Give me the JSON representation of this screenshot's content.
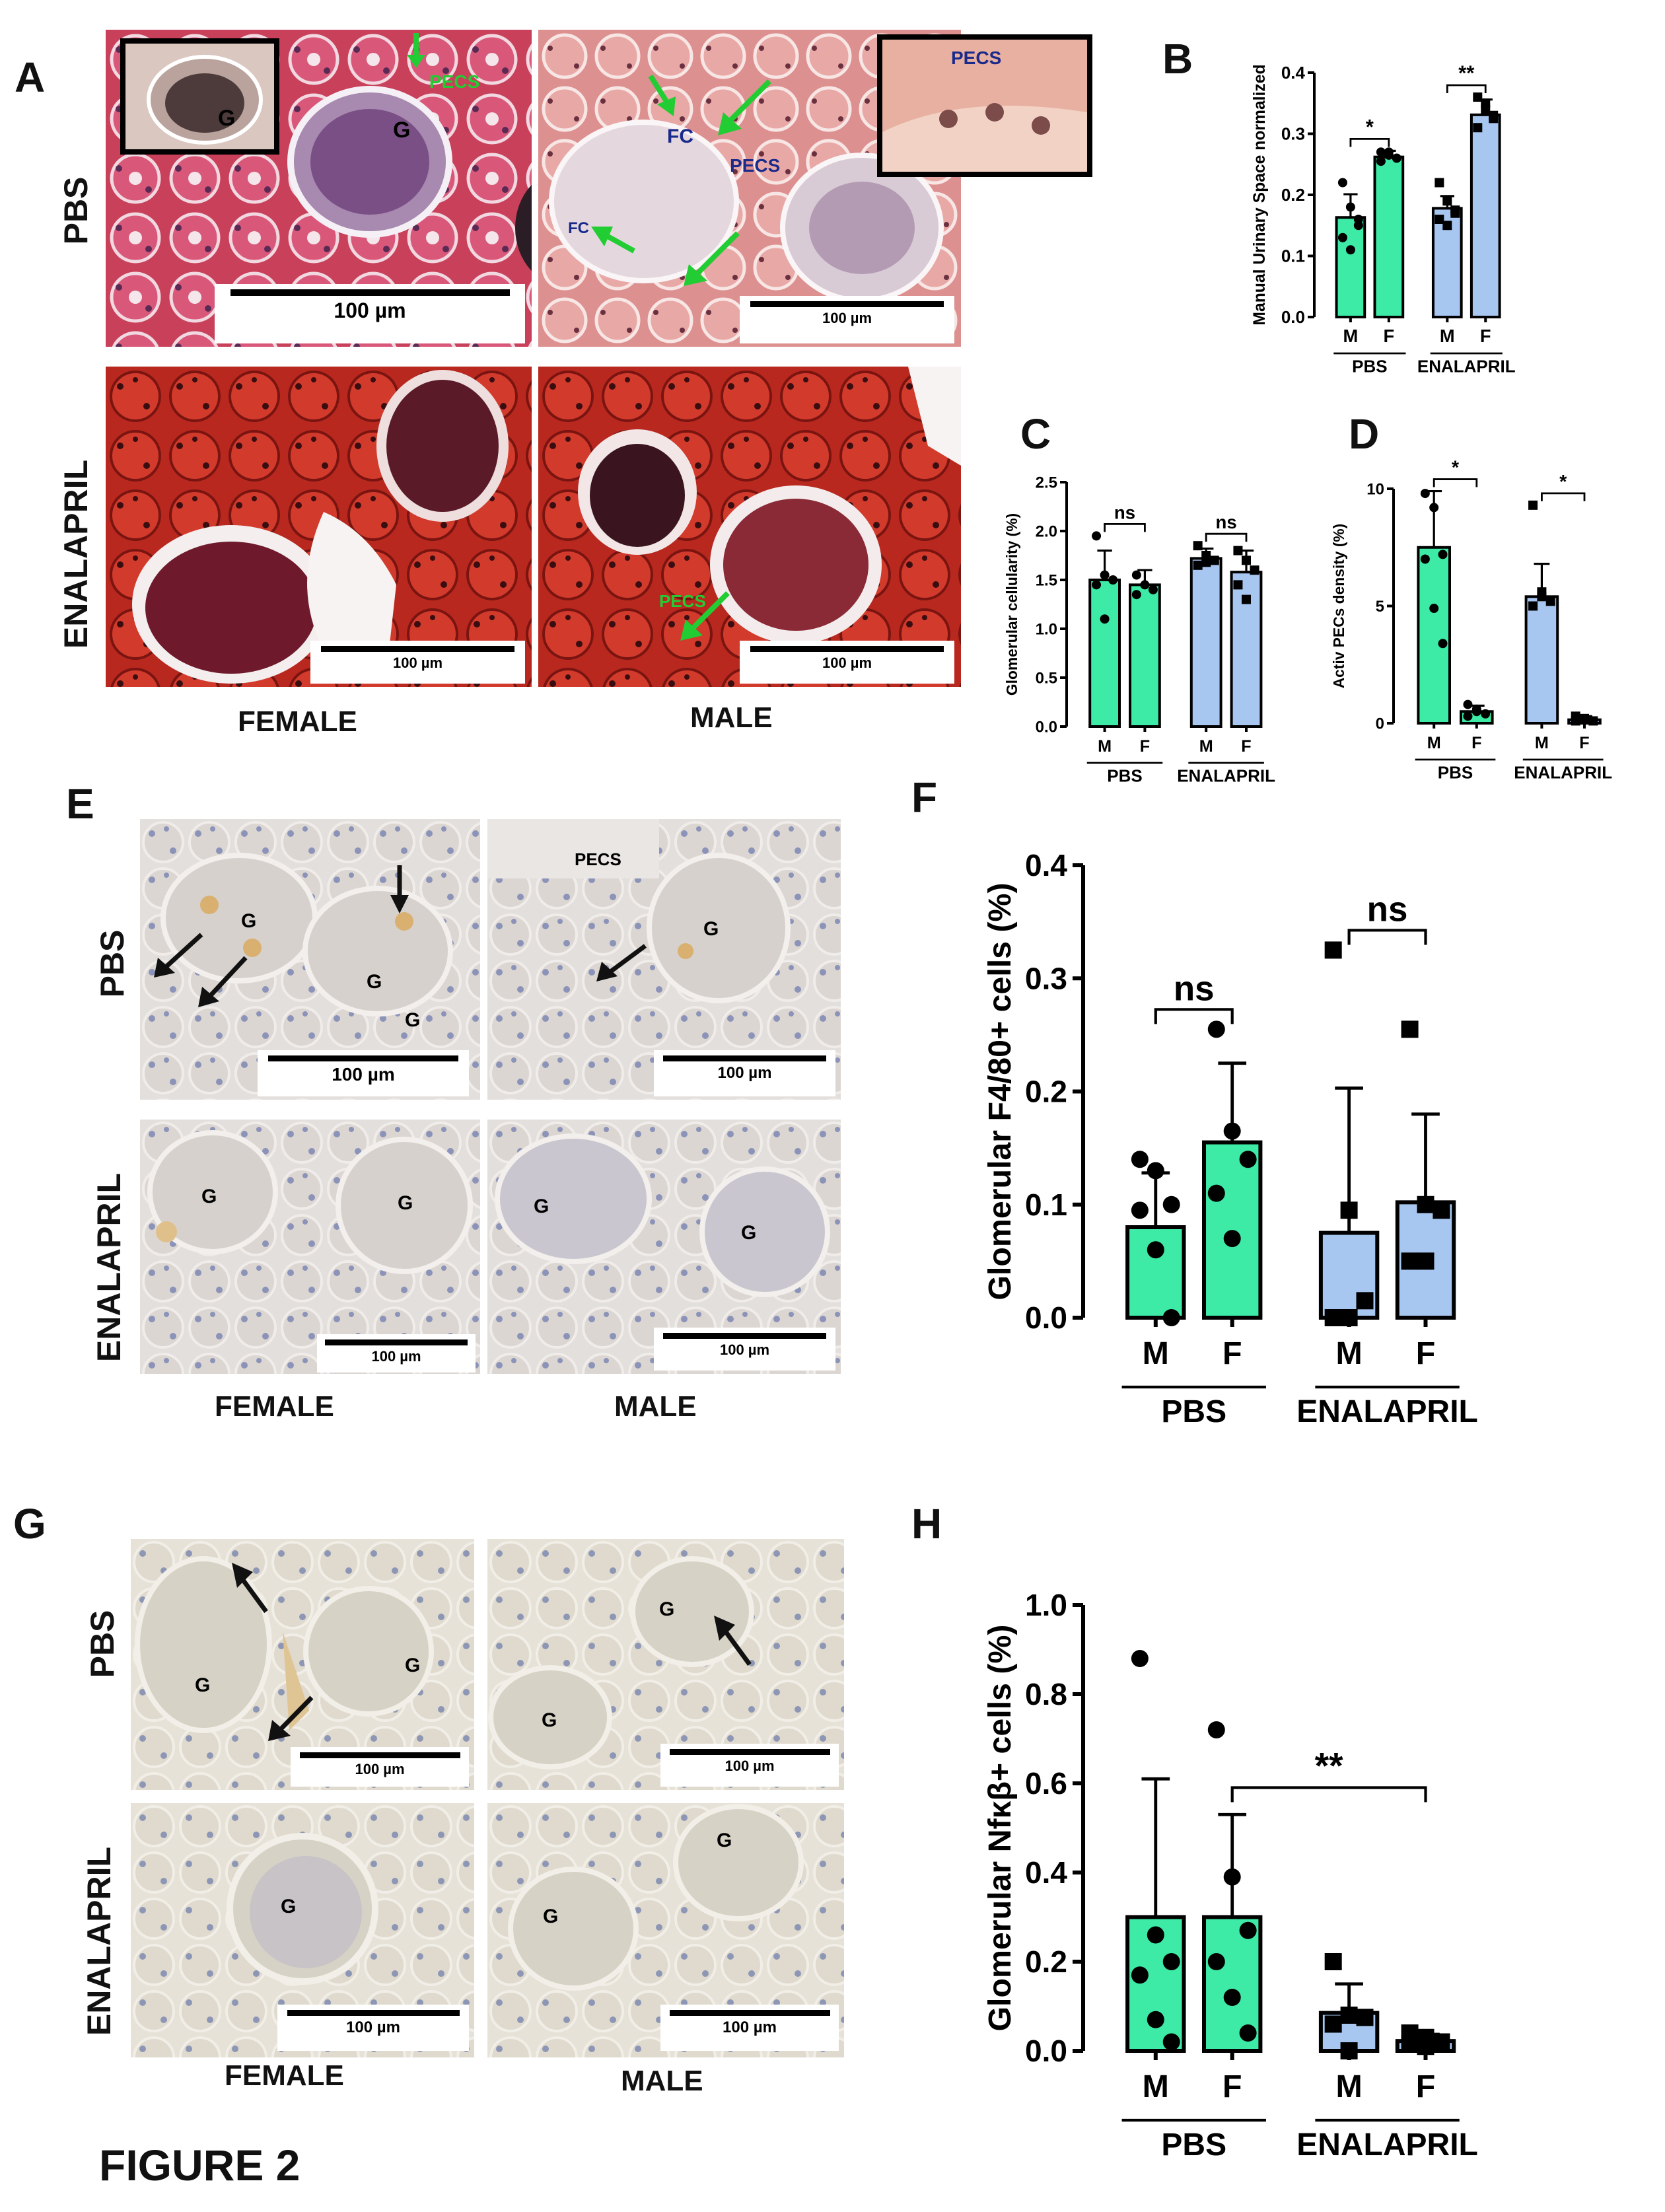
{
  "figure": {
    "title": "FIGURE 2",
    "panel_letters": [
      "A",
      "B",
      "C",
      "D",
      "E",
      "F",
      "G",
      "H"
    ],
    "row_labels": {
      "pbs": "PBS",
      "enalapril": "ENALAPRIL"
    },
    "col_labels": {
      "female": "FEMALE",
      "male": "MALE"
    },
    "scale_label": "100 µm",
    "micro_labels": {
      "glomerulus": "G",
      "pecs": "PECS",
      "fc": "FC"
    },
    "colors": {
      "pbs_bar": "#3deba6",
      "enal_bar": "#a7c7f0",
      "arrow_green": "#22cc33",
      "trichrome_bg": "#c43a4c",
      "ihc_bg": "#e3e0de"
    }
  },
  "chart_data": [
    {
      "panel": "B",
      "type": "bar",
      "ylabel": "Manual Urinary Space normalized",
      "ylim": [
        0,
        0.4
      ],
      "yticks": [
        "0.0",
        "0.1",
        "0.2",
        "0.3",
        "0.4"
      ],
      "categories": [
        "M",
        "F",
        "M",
        "F"
      ],
      "groups": [
        "PBS",
        "ENALAPRIL"
      ],
      "values": [
        0.163,
        0.262,
        0.178,
        0.331
      ],
      "errors": [
        0.038,
        0.01,
        0.02,
        0.025
      ],
      "points": [
        [
          0.22,
          0.18,
          0.15,
          0.13,
          0.11,
          0.16
        ],
        [
          0.27,
          0.265,
          0.26,
          0.255,
          0.27
        ],
        [
          0.22,
          0.19,
          0.175,
          0.16,
          0.15,
          0.17
        ],
        [
          0.36,
          0.34,
          0.325,
          0.31,
          0.35,
          0.33
        ]
      ],
      "markers": [
        "circle",
        "circle",
        "square",
        "square"
      ],
      "significance": [
        "*",
        "**"
      ]
    },
    {
      "panel": "C",
      "type": "bar",
      "ylabel": "Glomerular cellularity (%)",
      "ylim": [
        0,
        2.5
      ],
      "yticks": [
        "0.0",
        "0.5",
        "1.0",
        "1.5",
        "2.0",
        "2.5"
      ],
      "categories": [
        "M",
        "F",
        "M",
        "F"
      ],
      "groups": [
        "PBS",
        "ENALAPRIL"
      ],
      "values": [
        1.5,
        1.45,
        1.72,
        1.58
      ],
      "errors": [
        0.3,
        0.15,
        0.1,
        0.22
      ],
      "points": [
        [
          1.95,
          1.55,
          1.5,
          1.45,
          1.1
        ],
        [
          1.55,
          1.45,
          1.4,
          1.35
        ],
        [
          1.85,
          1.75,
          1.7,
          1.65,
          1.68
        ],
        [
          1.8,
          1.7,
          1.6,
          1.45,
          1.3
        ]
      ],
      "markers": [
        "circle",
        "circle",
        "square",
        "square"
      ],
      "significance": [
        "ns",
        "ns"
      ]
    },
    {
      "panel": "D",
      "type": "bar",
      "ylabel": "Activ PECs density (%)",
      "ylim": [
        0,
        10
      ],
      "yticks": [
        "0",
        "5",
        "10"
      ],
      "categories": [
        "M",
        "F",
        "M",
        "F"
      ],
      "groups": [
        "PBS",
        "ENALAPRIL"
      ],
      "values": [
        7.5,
        0.5,
        5.4,
        0.15
      ],
      "errors": [
        2.4,
        0.25,
        1.4,
        0.15
      ],
      "points": [
        [
          9.8,
          9.2,
          7.2,
          7.0,
          4.9,
          3.4
        ],
        [
          0.8,
          0.6,
          0.4,
          0.3,
          0.5
        ],
        [
          9.3,
          5.4,
          5.2,
          5.0,
          5.6
        ],
        [
          0.3,
          0.2,
          0.1,
          0.1,
          0.2
        ]
      ],
      "markers": [
        "circle",
        "circle",
        "square",
        "square"
      ],
      "significance": [
        "*",
        "*"
      ]
    },
    {
      "panel": "F",
      "type": "bar",
      "ylabel": "Glomerular F4/80+ cells (%)",
      "ylim": [
        0,
        0.4
      ],
      "yticks": [
        "0.0",
        "0.1",
        "0.2",
        "0.3",
        "0.4"
      ],
      "categories": [
        "M",
        "F",
        "M",
        "F"
      ],
      "groups": [
        "PBS",
        "ENALAPRIL"
      ],
      "values": [
        0.08,
        0.155,
        0.075,
        0.102
      ],
      "errors": [
        0.048,
        0.07,
        0.128,
        0.078
      ],
      "points": [
        [
          0.14,
          0.13,
          0.1,
          0.095,
          0.06,
          0.0
        ],
        [
          0.255,
          0.165,
          0.14,
          0.11,
          0.07
        ],
        [
          0.325,
          0.095,
          0.015,
          0.0,
          0.0
        ],
        [
          0.255,
          0.1,
          0.095,
          0.05,
          0.05
        ]
      ],
      "markers": [
        "circle",
        "circle",
        "square",
        "square"
      ],
      "significance": [
        "ns",
        "ns"
      ]
    },
    {
      "panel": "H",
      "type": "bar",
      "ylabel": "Glomerular Nfκβ+ cells (%)",
      "ylim": [
        0,
        1.0
      ],
      "yticks": [
        "0.0",
        "0.2",
        "0.4",
        "0.6",
        "0.8",
        "1.0"
      ],
      "categories": [
        "M",
        "F",
        "M",
        "F"
      ],
      "groups": [
        "PBS",
        "ENALAPRIL"
      ],
      "values": [
        0.3,
        0.3,
        0.085,
        0.022
      ],
      "errors": [
        0.31,
        0.23,
        0.065,
        0.015
      ],
      "points": [
        [
          0.88,
          0.26,
          0.2,
          0.17,
          0.07,
          0.02
        ],
        [
          0.72,
          0.39,
          0.27,
          0.2,
          0.12,
          0.04
        ],
        [
          0.2,
          0.08,
          0.075,
          0.06,
          0.0
        ],
        [
          0.04,
          0.03,
          0.02,
          0.015,
          0.01
        ]
      ],
      "markers": [
        "circle",
        "circle",
        "square",
        "square"
      ],
      "significance": [
        "**"
      ]
    }
  ]
}
